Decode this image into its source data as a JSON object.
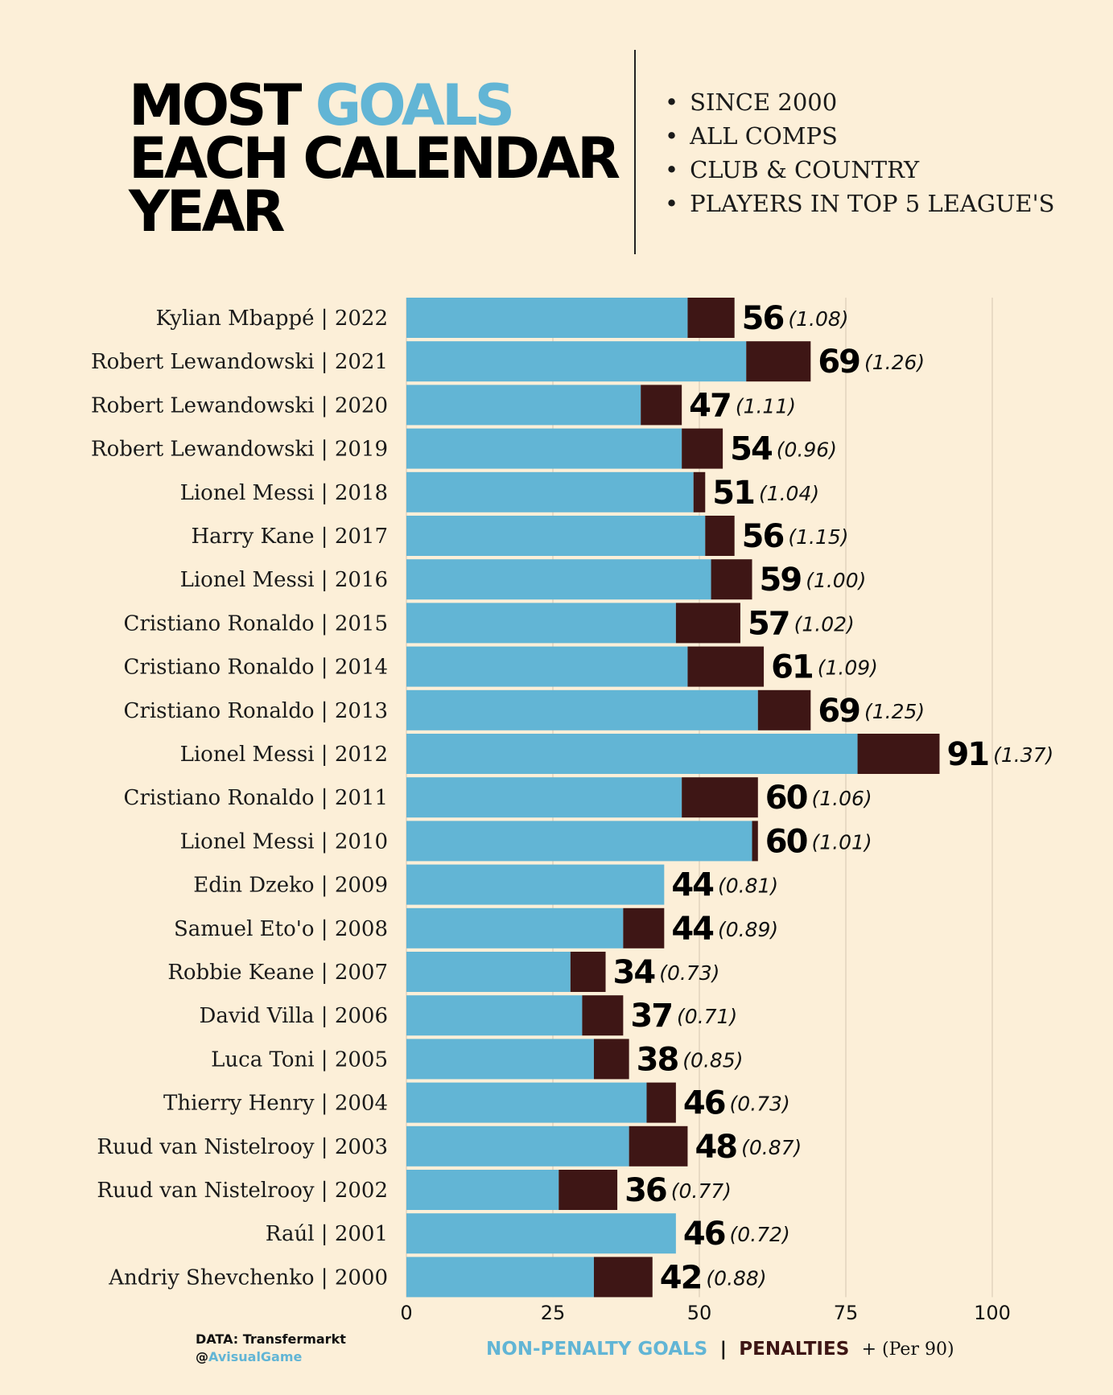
{
  "header": {
    "title_line1_pre": "MOST",
    "title_line1_accent": "GOALS",
    "title_line2": "EACH CALENDAR",
    "title_line3": "YEAR",
    "bullets": [
      "SINCE 2000",
      "ALL COMPS",
      "CLUB & COUNTRY",
      "PLAYERS IN TOP 5 LEAGUE'S"
    ]
  },
  "footer": {
    "source": "DATA: Transfermarkt",
    "handle_prefix": "@",
    "handle": "AvisualGame"
  },
  "legend": {
    "non_penalty": "NON-PENALTY GOALS",
    "separator": "|",
    "penalties": "PENALTIES",
    "per90": "+ (Per 90)"
  },
  "colors": {
    "non_penalty": "#62b5d5",
    "penalties": "#3e1615",
    "background": "#fcefd8"
  },
  "chart_data": {
    "type": "bar",
    "orientation": "horizontal",
    "stacked": true,
    "xlim": [
      0,
      100
    ],
    "x_ticks": [
      0,
      25,
      50,
      75,
      100
    ],
    "grid": true,
    "categories": [
      "Kylian Mbappé  |  2022",
      "Robert Lewandowski  |  2021",
      "Robert Lewandowski  |  2020",
      "Robert Lewandowski  |  2019",
      "Lionel Messi  |  2018",
      "Harry Kane  |  2017",
      "Lionel Messi  |  2016",
      "Cristiano Ronaldo  |  2015",
      "Cristiano Ronaldo  |  2014",
      "Cristiano Ronaldo  |  2013",
      "Lionel Messi  |  2012",
      "Cristiano Ronaldo  |  2011",
      "Lionel Messi  |  2010",
      "Edin Dzeko  |  2009",
      "Samuel Eto'o  |  2008",
      "Robbie Keane  |  2007",
      "David Villa  |  2006",
      "Luca Toni |  2005",
      "Thierry Henry  |  2004",
      "Ruud van Nistelrooy  |  2003",
      "Ruud van Nistelrooy  |  2002",
      "Raúl  |  2001",
      "Andriy Shevchenko  |  2000"
    ],
    "series": [
      {
        "name": "NON-PENALTY GOALS",
        "values": [
          48,
          58,
          40,
          47,
          49,
          51,
          52,
          46,
          48,
          60,
          77,
          47,
          59,
          44,
          37,
          28,
          30,
          32,
          41,
          38,
          26,
          46,
          32
        ]
      },
      {
        "name": "PENALTIES",
        "values": [
          8,
          11,
          7,
          7,
          2,
          5,
          7,
          11,
          13,
          9,
          14,
          13,
          1,
          0,
          7,
          6,
          7,
          6,
          5,
          10,
          10,
          0,
          10
        ]
      }
    ],
    "totals": [
      "56",
      "69",
      "47",
      "54",
      "51",
      "56",
      "59",
      "57",
      "61",
      "69",
      "91",
      "60",
      "60",
      "44",
      "44",
      "34",
      "37",
      "38",
      "46",
      "48",
      "36",
      "46",
      "42"
    ],
    "per90": [
      "(1.08)",
      "(1.26)",
      "(1.11)",
      "(0.96)",
      "(1.04)",
      "(1.15)",
      "(1.00)",
      "(1.02)",
      "(1.09)",
      "(1.25)",
      "(1.37)",
      "(1.06)",
      "(1.01)",
      "(0.81)",
      "(0.89)",
      "(0.73)",
      "(0.71)",
      "(0.85)",
      "(0.73)",
      "(0.87)",
      "(0.77)",
      "(0.72)",
      "(0.88)"
    ]
  }
}
